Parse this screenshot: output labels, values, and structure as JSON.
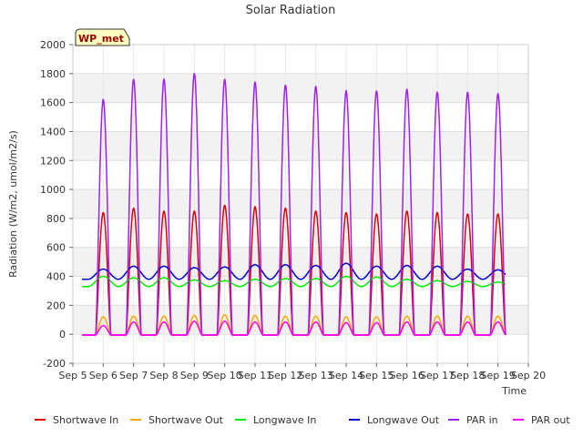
{
  "chart_data": {
    "type": "line",
    "title": "Solar Radiation",
    "xlabel": "Time",
    "ylabel": "Radiation (W/m2, umol/m2/s)",
    "ylim": [
      -200,
      2000
    ],
    "xlim": [
      5,
      20
    ],
    "yticks": [
      -200,
      0,
      200,
      400,
      600,
      800,
      1000,
      1200,
      1400,
      1600,
      1800,
      2000
    ],
    "xticks": [
      5,
      6,
      7,
      8,
      9,
      10,
      11,
      12,
      13,
      14,
      15,
      16,
      17,
      18,
      19,
      20
    ],
    "xtick_labels": [
      "Sep 5",
      "Sep 6",
      "Sep 7",
      "Sep 8",
      "Sep 9",
      "Sep 10",
      "Sep 11",
      "Sep 12",
      "Sep 13",
      "Sep 14",
      "Sep 15",
      "Sep 16",
      "Sep 17",
      "Sep 18",
      "Sep 19",
      "Sep 20"
    ],
    "grid": true,
    "background_bands": true,
    "legend_position": "bottom",
    "annotation": "WP_met",
    "x_data_range": [
      5.3,
      19.25
    ],
    "series": [
      {
        "name": "Shortwave In",
        "color": "#dd0000",
        "kind": "diurnal",
        "base": -5,
        "daily_peaks": [
          {
            "day": 6,
            "value": 840
          },
          {
            "day": 7,
            "value": 870
          },
          {
            "day": 8,
            "value": 850
          },
          {
            "day": 9,
            "value": 850
          },
          {
            "day": 10,
            "value": 890
          },
          {
            "day": 11,
            "value": 880
          },
          {
            "day": 12,
            "value": 870
          },
          {
            "day": 13,
            "value": 850
          },
          {
            "day": 14,
            "value": 840
          },
          {
            "day": 15,
            "value": 830
          },
          {
            "day": 16,
            "value": 850
          },
          {
            "day": 17,
            "value": 840
          },
          {
            "day": 18,
            "value": 830
          },
          {
            "day": 19,
            "value": 830
          }
        ]
      },
      {
        "name": "Shortwave Out",
        "color": "#ffa500",
        "kind": "diurnal",
        "base": -5,
        "daily_peaks": [
          {
            "day": 6,
            "value": 120
          },
          {
            "day": 7,
            "value": 125
          },
          {
            "day": 8,
            "value": 125
          },
          {
            "day": 9,
            "value": 130
          },
          {
            "day": 10,
            "value": 135
          },
          {
            "day": 11,
            "value": 130
          },
          {
            "day": 12,
            "value": 125
          },
          {
            "day": 13,
            "value": 125
          },
          {
            "day": 14,
            "value": 120
          },
          {
            "day": 15,
            "value": 120
          },
          {
            "day": 16,
            "value": 125
          },
          {
            "day": 17,
            "value": 125
          },
          {
            "day": 18,
            "value": 125
          },
          {
            "day": 19,
            "value": 125
          }
        ]
      },
      {
        "name": "Longwave In",
        "color": "#00ee00",
        "kind": "smooth",
        "base": 330,
        "daily_peaks": [
          {
            "day": 6,
            "value": 400
          },
          {
            "day": 7,
            "value": 390
          },
          {
            "day": 8,
            "value": 390
          },
          {
            "day": 9,
            "value": 375
          },
          {
            "day": 10,
            "value": 370
          },
          {
            "day": 11,
            "value": 380
          },
          {
            "day": 12,
            "value": 385
          },
          {
            "day": 13,
            "value": 385
          },
          {
            "day": 14,
            "value": 400
          },
          {
            "day": 15,
            "value": 395
          },
          {
            "day": 16,
            "value": 380
          },
          {
            "day": 17,
            "value": 370
          },
          {
            "day": 18,
            "value": 365
          },
          {
            "day": 19,
            "value": 360
          }
        ]
      },
      {
        "name": "Longwave Out",
        "color": "#0000cc",
        "kind": "smooth",
        "base": 380,
        "daily_peaks": [
          {
            "day": 6,
            "value": 450
          },
          {
            "day": 7,
            "value": 470
          },
          {
            "day": 8,
            "value": 470
          },
          {
            "day": 9,
            "value": 460
          },
          {
            "day": 10,
            "value": 465
          },
          {
            "day": 11,
            "value": 480
          },
          {
            "day": 12,
            "value": 480
          },
          {
            "day": 13,
            "value": 475
          },
          {
            "day": 14,
            "value": 490
          },
          {
            "day": 15,
            "value": 470
          },
          {
            "day": 16,
            "value": 475
          },
          {
            "day": 17,
            "value": 470
          },
          {
            "day": 18,
            "value": 450
          },
          {
            "day": 19,
            "value": 445
          }
        ]
      },
      {
        "name": "PAR in",
        "color": "#a020f0",
        "kind": "diurnal",
        "base": -5,
        "daily_peaks": [
          {
            "day": 6,
            "value": 1620
          },
          {
            "day": 7,
            "value": 1760
          },
          {
            "day": 8,
            "value": 1760
          },
          {
            "day": 9,
            "value": 1800
          },
          {
            "day": 10,
            "value": 1760
          },
          {
            "day": 11,
            "value": 1740
          },
          {
            "day": 12,
            "value": 1720
          },
          {
            "day": 13,
            "value": 1710
          },
          {
            "day": 14,
            "value": 1680
          },
          {
            "day": 15,
            "value": 1680
          },
          {
            "day": 16,
            "value": 1690
          },
          {
            "day": 17,
            "value": 1670
          },
          {
            "day": 18,
            "value": 1670
          },
          {
            "day": 19,
            "value": 1660
          }
        ]
      },
      {
        "name": "PAR out",
        "color": "#ff00ff",
        "kind": "diurnal",
        "base": -5,
        "daily_peaks": [
          {
            "day": 6,
            "value": 60
          },
          {
            "day": 7,
            "value": 85
          },
          {
            "day": 8,
            "value": 85
          },
          {
            "day": 9,
            "value": 90
          },
          {
            "day": 10,
            "value": 90
          },
          {
            "day": 11,
            "value": 85
          },
          {
            "day": 12,
            "value": 85
          },
          {
            "day": 13,
            "value": 85
          },
          {
            "day": 14,
            "value": 80
          },
          {
            "day": 15,
            "value": 80
          },
          {
            "day": 16,
            "value": 85
          },
          {
            "day": 17,
            "value": 85
          },
          {
            "day": 18,
            "value": 85
          },
          {
            "day": 19,
            "value": 85
          }
        ]
      }
    ]
  }
}
